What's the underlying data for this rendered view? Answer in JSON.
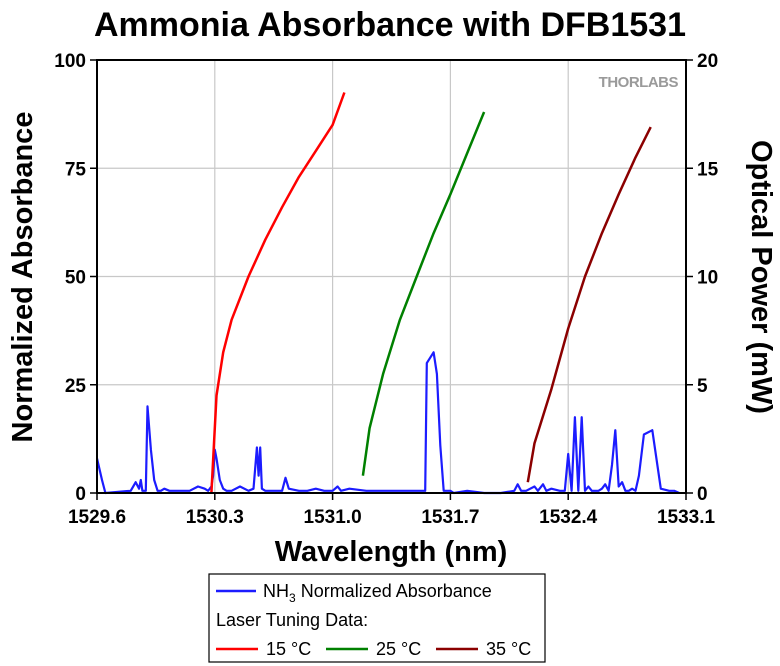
{
  "chart_data": {
    "type": "line",
    "title": "Ammonia Absorbance with DFB1531",
    "xlabel": "Wavelength (nm)",
    "ylabel_left": "Normalized Absorbance",
    "ylabel_right": "Optical Power (mW)",
    "xlim": [
      1529.6,
      1533.1
    ],
    "ylim_left": [
      0,
      100
    ],
    "ylim_right": [
      0,
      20
    ],
    "x_ticks": [
      "1529.6",
      "1530.3",
      "1531.0",
      "1531.7",
      "1532.4",
      "1533.1"
    ],
    "y_left_ticks": [
      "0",
      "25",
      "50",
      "75",
      "100"
    ],
    "y_right_ticks": [
      "0",
      "5",
      "10",
      "15",
      "20"
    ],
    "grid": true,
    "logo": "THORLABS",
    "colors": {
      "absorbance": "#1c1cff",
      "t15": "#ff0000",
      "t25": "#008000",
      "t35": "#8b0000",
      "grid": "#c8c8c8"
    },
    "absorbance_series": {
      "name": "NH3 Normalized Absorbance",
      "axis": "left",
      "x": [
        1529.6,
        1529.63,
        1529.65,
        1529.8,
        1529.83,
        1529.85,
        1529.86,
        1529.87,
        1529.88,
        1529.89,
        1529.9,
        1529.92,
        1529.94,
        1529.96,
        1529.98,
        1530.0,
        1530.03,
        1530.1,
        1530.15,
        1530.2,
        1530.24,
        1530.26,
        1530.27,
        1530.28,
        1530.29,
        1530.3,
        1530.31,
        1530.33,
        1530.35,
        1530.37,
        1530.4,
        1530.45,
        1530.5,
        1530.53,
        1530.55,
        1530.56,
        1530.57,
        1530.58,
        1530.6,
        1530.65,
        1530.7,
        1530.72,
        1530.74,
        1530.8,
        1530.85,
        1530.9,
        1530.95,
        1531.0,
        1531.03,
        1531.05,
        1531.1,
        1531.2,
        1531.3,
        1531.4,
        1531.5,
        1531.55,
        1531.56,
        1531.6,
        1531.62,
        1531.64,
        1531.66,
        1531.7,
        1531.72,
        1531.8,
        1531.9,
        1532.0,
        1532.08,
        1532.1,
        1532.12,
        1532.15,
        1532.2,
        1532.22,
        1532.25,
        1532.27,
        1532.3,
        1532.35,
        1532.38,
        1532.4,
        1532.42,
        1532.44,
        1532.46,
        1532.48,
        1532.5,
        1532.52,
        1532.54,
        1532.56,
        1532.58,
        1532.6,
        1532.62,
        1532.64,
        1532.66,
        1532.68,
        1532.7,
        1532.72,
        1532.74,
        1532.76,
        1532.78,
        1532.8,
        1532.82,
        1532.85,
        1532.9,
        1532.95,
        1533.0,
        1533.03,
        1533.06
      ],
      "y": [
        8,
        3,
        0,
        0.5,
        2.5,
        1,
        3,
        0.5,
        0.5,
        0.5,
        20,
        10,
        3,
        0.5,
        0.5,
        1,
        0.5,
        0.5,
        0.5,
        1.5,
        1,
        0.5,
        1,
        1.5,
        4,
        10,
        8,
        3,
        1,
        0.5,
        0.5,
        1.5,
        0.5,
        1,
        10.5,
        4,
        10.5,
        1,
        0.5,
        0.5,
        0.5,
        3.5,
        1,
        0.5,
        0.5,
        1,
        0.5,
        0.5,
        1.5,
        0.5,
        1,
        0.5,
        0.5,
        0.5,
        0.5,
        0.5,
        30,
        32.5,
        27.5,
        11,
        0.5,
        0.5,
        0,
        0.5,
        0,
        0,
        0.5,
        2,
        0.5,
        0.5,
        1.5,
        0.5,
        2,
        0.5,
        1,
        0.5,
        0.5,
        9,
        0.5,
        17.5,
        0.5,
        17.5,
        0.5,
        1.5,
        0.5,
        0.5,
        0.5,
        1,
        2,
        0.5,
        6.5,
        14.5,
        1.5,
        2.5,
        0.5,
        0.5,
        1,
        0.5,
        4,
        13.5,
        14.5,
        1,
        0.5,
        0.5,
        0
      ]
    },
    "tuning_series": [
      {
        "name": "15 °C",
        "axis": "right",
        "color": "#ff0000",
        "x": [
          1530.28,
          1530.31,
          1530.35,
          1530.4,
          1530.5,
          1530.6,
          1530.7,
          1530.8,
          1530.9,
          1531.0,
          1531.07
        ],
        "y": [
          0,
          4.5,
          6.5,
          8,
          10,
          11.7,
          13.2,
          14.6,
          15.8,
          17,
          18.5
        ]
      },
      {
        "name": "25 °C",
        "axis": "right",
        "color": "#008000",
        "x": [
          1531.18,
          1531.22,
          1531.3,
          1531.4,
          1531.5,
          1531.6,
          1531.7,
          1531.8,
          1531.9
        ],
        "y": [
          0.8,
          3,
          5.5,
          8,
          10,
          12,
          13.8,
          15.7,
          17.6
        ]
      },
      {
        "name": "35 °C",
        "axis": "right",
        "color": "#8b0000",
        "x": [
          1532.16,
          1532.2,
          1532.3,
          1532.4,
          1532.5,
          1532.6,
          1532.7,
          1532.8,
          1532.89
        ],
        "y": [
          0.5,
          2.3,
          4.8,
          7.6,
          10,
          12,
          13.8,
          15.5,
          16.9
        ]
      }
    ],
    "legend": {
      "absorbance_label_prefix": "NH",
      "absorbance_label_sub": "3",
      "absorbance_label_suffix": " Normalized Absorbance",
      "tuning_heading": "Laser Tuning Data:",
      "placement": "bottom"
    }
  }
}
